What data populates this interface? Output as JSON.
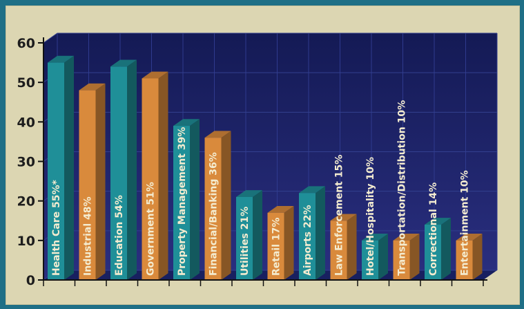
{
  "chart_data": {
    "type": "bar",
    "title": "",
    "xlabel": "",
    "ylabel": "",
    "ylim": [
      0,
      60
    ],
    "yticks": [
      0,
      10,
      20,
      30,
      40,
      50,
      60
    ],
    "grid": true,
    "colors": {
      "teal": "#1f8f98",
      "orange": "#d98a3c",
      "plot_bg": "#1c2466"
    },
    "categories": [
      "Health Care 55%*",
      "Industrial 48%",
      "Education 54%",
      "Government 51%",
      "Property Management 39%",
      "Financial/Banking 36%",
      "Utilities 21%",
      "Retail 17%",
      "Airports 22%",
      "Law Enforcement 15%",
      "Hotel/Hospitality 10%",
      "Transportation/Distribution 10%",
      "Correctional 14%",
      "Entertainment 10%"
    ],
    "values": [
      55,
      48,
      54,
      51,
      39,
      36,
      21,
      17,
      22,
      15,
      10,
      10,
      14,
      10
    ],
    "bar_colors": [
      "teal",
      "orange",
      "teal",
      "orange",
      "teal",
      "orange",
      "teal",
      "orange",
      "teal",
      "orange",
      "teal",
      "orange",
      "teal",
      "orange"
    ]
  }
}
